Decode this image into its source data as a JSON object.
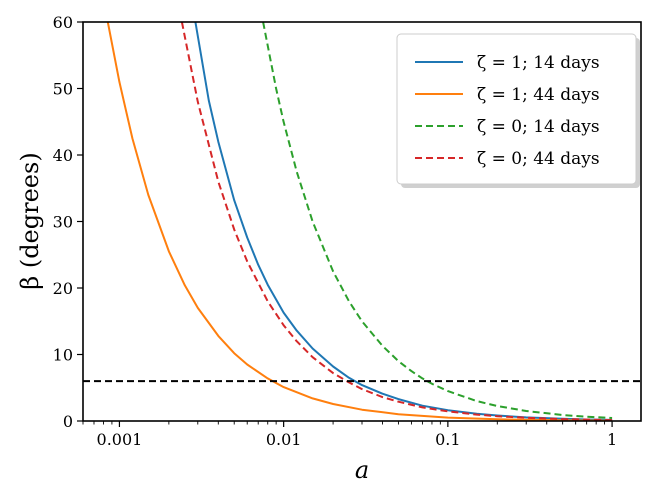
{
  "chart_data": {
    "type": "line",
    "xlabel": "a",
    "ylabel": "β (degrees)",
    "xscale": "log",
    "xlim": [
      0.0006,
      1.5
    ],
    "ylim": [
      0,
      60
    ],
    "xticks": [
      0.001,
      0.01,
      0.1,
      1
    ],
    "xtick_labels": [
      "0.001",
      "0.01",
      "0.1",
      "1"
    ],
    "yticks": [
      0,
      10,
      20,
      30,
      40,
      50,
      60
    ],
    "ytick_labels": [
      "0",
      "10",
      "20",
      "30",
      "40",
      "50",
      "60"
    ],
    "grid": false,
    "legend_position": "top-right",
    "series": [
      {
        "name": "ζ = 1;  14 days",
        "color": "#1f77b4",
        "dash": "solid",
        "x": [
          0.0029,
          0.0035,
          0.004,
          0.005,
          0.006,
          0.007,
          0.008,
          0.01,
          0.012,
          0.015,
          0.02,
          0.025,
          0.03,
          0.04,
          0.05,
          0.07,
          0.1,
          0.15,
          0.2,
          0.3,
          0.5,
          0.7,
          1.0
        ],
        "y": [
          60,
          48.2,
          42.0,
          33.2,
          27.6,
          23.5,
          20.5,
          16.3,
          13.6,
          10.9,
          8.2,
          6.5,
          5.4,
          4.1,
          3.3,
          2.3,
          1.63,
          1.09,
          0.82,
          0.54,
          0.33,
          0.23,
          0.16
        ]
      },
      {
        "name": "ζ = 1;  44 days",
        "color": "#ff7f0e",
        "dash": "solid",
        "x": [
          0.00085,
          0.001,
          0.0012,
          0.0015,
          0.002,
          0.0025,
          0.003,
          0.004,
          0.005,
          0.006,
          0.008,
          0.01,
          0.015,
          0.02,
          0.03,
          0.05,
          0.1,
          0.2,
          0.5,
          1.0
        ],
        "y": [
          60,
          51.0,
          42.5,
          34.0,
          25.5,
          20.4,
          17.0,
          12.8,
          10.2,
          8.5,
          6.4,
          5.1,
          3.4,
          2.55,
          1.7,
          1.02,
          0.51,
          0.26,
          0.1,
          0.05
        ]
      },
      {
        "name": "ζ = 0;  14 days",
        "color": "#2ca02c",
        "dash": "dashed",
        "x": [
          0.0075,
          0.009,
          0.01,
          0.012,
          0.015,
          0.02,
          0.025,
          0.03,
          0.04,
          0.05,
          0.06,
          0.07,
          0.08,
          0.1,
          0.15,
          0.2,
          0.3,
          0.5,
          0.7,
          1.0
        ],
        "y": [
          60,
          50.0,
          45.0,
          37.5,
          30.0,
          22.5,
          18.0,
          15.0,
          11.3,
          9.0,
          7.5,
          6.4,
          5.6,
          4.5,
          3.0,
          2.25,
          1.5,
          0.9,
          0.64,
          0.45
        ]
      },
      {
        "name": "ζ = 0;  44 days",
        "color": "#d62728",
        "dash": "dashed",
        "x": [
          0.0024,
          0.003,
          0.004,
          0.005,
          0.006,
          0.008,
          0.01,
          0.012,
          0.015,
          0.02,
          0.025,
          0.03,
          0.04,
          0.05,
          0.07,
          0.1,
          0.15,
          0.2,
          0.3,
          0.5,
          1.0
        ],
        "y": [
          60,
          48.0,
          36.0,
          28.8,
          24.0,
          18.0,
          14.4,
          12.0,
          9.6,
          7.2,
          5.8,
          4.8,
          3.6,
          2.9,
          2.05,
          1.44,
          0.96,
          0.72,
          0.48,
          0.29,
          0.14
        ]
      }
    ],
    "reference_lines": [
      {
        "orientation": "horizontal",
        "y": 6,
        "color": "#000000",
        "dash": "dashed"
      }
    ]
  }
}
